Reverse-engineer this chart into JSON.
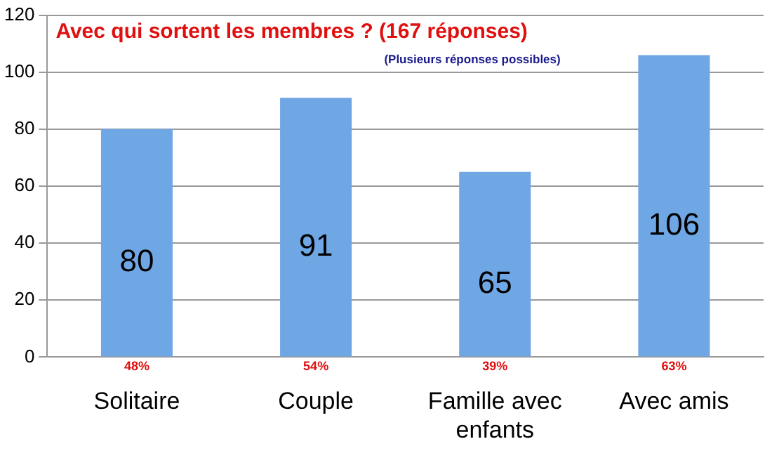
{
  "chart_data": {
    "type": "bar",
    "title": "Avec qui sortent les membres ? (167 réponses)",
    "subtitle": "(Plusieurs réponses possibles)",
    "categories": [
      "Solitaire",
      "Couple",
      "Famille avec enfants",
      "Avec amis"
    ],
    "values": [
      80,
      91,
      65,
      106
    ],
    "color": "#6fa6e4",
    "data_labels": true,
    "ylim": [
      0,
      120
    ],
    "yticks": [
      0,
      20,
      40,
      60,
      80,
      100,
      120
    ],
    "grid": "y",
    "legend": false,
    "annotations": [
      {
        "text": "48%",
        "x": "Solitaire",
        "y": 0
      },
      {
        "text": "54%",
        "x": "Couple",
        "y": 0
      },
      {
        "text": "39%",
        "x": "Famille avec enfants",
        "y": 0
      },
      {
        "text": "63%",
        "x": "Avec amis",
        "y": 0
      }
    ]
  }
}
